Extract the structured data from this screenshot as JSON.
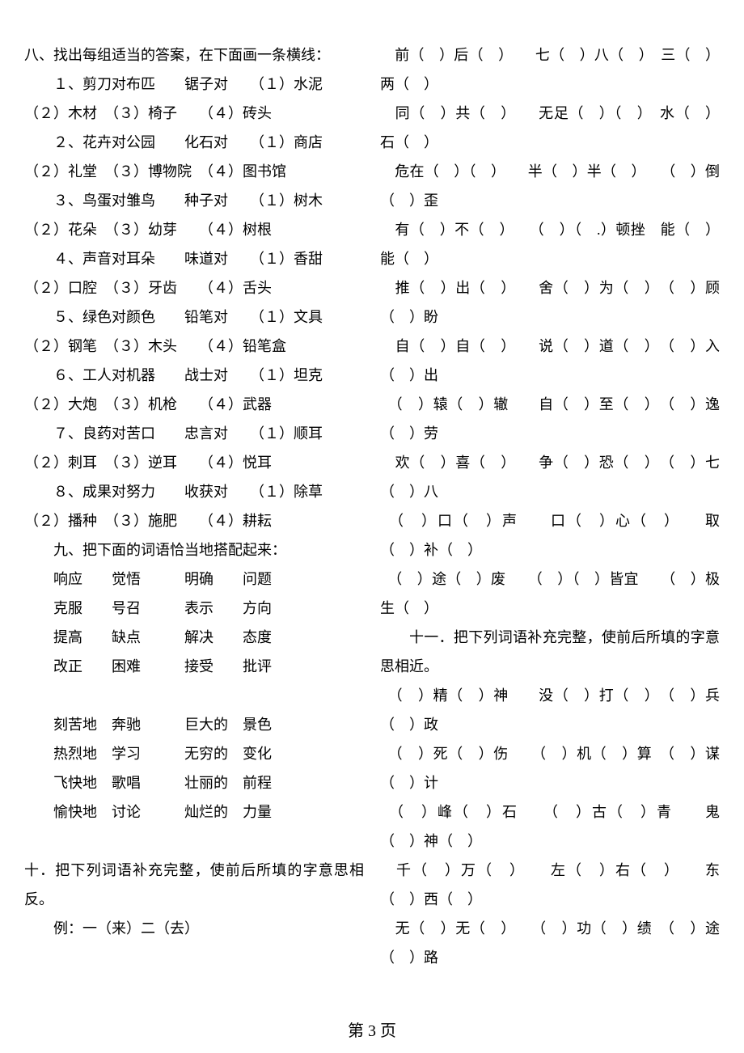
{
  "section8_title": "八、找出每组适当的答案，在下面画一条横线：",
  "section8": [
    {
      "q": "１、剪刀对布匹　　锯子对　　（１）水泥　（２）木材　（３）椅子　　（４）砖头"
    },
    {
      "q": "２、花卉对公园　　化石对　　（１）商店　（２）礼堂　（３）博物院　（４）图书馆"
    },
    {
      "q": "３、鸟蛋对雏鸟　　种子对　　（１）树木　（２）花朵　（３）幼芽　　（４）树根"
    },
    {
      "q": "４、声音对耳朵　　味道对　　（１）香甜　（２）口腔　（３）牙齿　　（４）舌头"
    },
    {
      "q": "５、绿色对颜色　　铅笔对　　（１）文具　（２）钢笔　（３）木头　　（４）铅笔盒"
    },
    {
      "q": "６、工人对机器　　战士对　　（１）坦克　（２）大炮　（３）机枪　　（４）武器"
    },
    {
      "q": "７、良药对苦口　　忠言对　　（１）顺耳　（２）刺耳　（３）逆耳　　（４）悦耳"
    },
    {
      "q": "８、成果对努力　　收获对　　（１）除草　（２）播种　（３）施肥　　（４）耕耘"
    }
  ],
  "section9_title": "九、把下面的词语恰当地搭配起来：",
  "pairs1": [
    [
      "响应",
      "觉悟",
      "明确",
      "问题"
    ],
    [
      "克服",
      "号召",
      "表示",
      "方向"
    ],
    [
      "提高",
      "缺点",
      "解决",
      "态度"
    ],
    [
      "改正",
      "困难",
      "接受",
      "批评"
    ]
  ],
  "pairs2": [
    [
      "刻苦地",
      "奔驰",
      "巨大的",
      "景色"
    ],
    [
      "热烈地",
      "学习",
      "无穷的",
      "变化"
    ],
    [
      "飞快地",
      "歌唱",
      "壮丽的",
      "前程"
    ],
    [
      "愉快地",
      "讨论",
      "灿烂的",
      "力量"
    ]
  ],
  "section10_title": "十．把下列词语补充完整，使前后所填的字意思相反。",
  "section10_example": "例：一（来）二（去）",
  "idioms10": [
    "　前（　）后（　）　　七（　）八（　）　三（　）两（　）",
    "　同（　）共（　）　　无足（　）（　）　水（　）石（　）",
    "　危在（　）（　）　　半（　）半（　）　　（　）倒（　）歪",
    "　有（　）不（　）　　（　）（　.）顿挫　能（　）能（　）",
    "　推（　）出（　）　　舍（　）为（　）　（　）顾（　）盼",
    "　自（　）自（　）　　说（　）道（　）　（　）入（　）出",
    "　（　）辕（　）辙　　自（　）至（　）　（　）逸（　）劳",
    "　欢（　）喜（　）　　争（　）恐（　）　（　）七（　）八",
    "　（　）口（　）声　　口（　）心（　）　　取（　）补（　）",
    "　（　）途（　）废　　（　）（　）皆宜　　（　）极生（　）"
  ],
  "section11_title": "十一．把下列词语补充完整，使前后所填的字意思相近。",
  "idioms11": [
    "　（　）精（　）神　　没（　）打（　）　（　）兵（　）政",
    "　（　）死（　）伤　　（　）机（　）算　（　）谋（　）计",
    "　（　）峰（　）石　　（　）古（　）青　　鬼（　）神（　）",
    "　千（　）万（　）　　左（　）右（　）　　东（　）西（　）",
    "　无（　）无（　）　　（　）功（　）绩　（　）途（　）路"
  ],
  "footer": "第 3 页"
}
